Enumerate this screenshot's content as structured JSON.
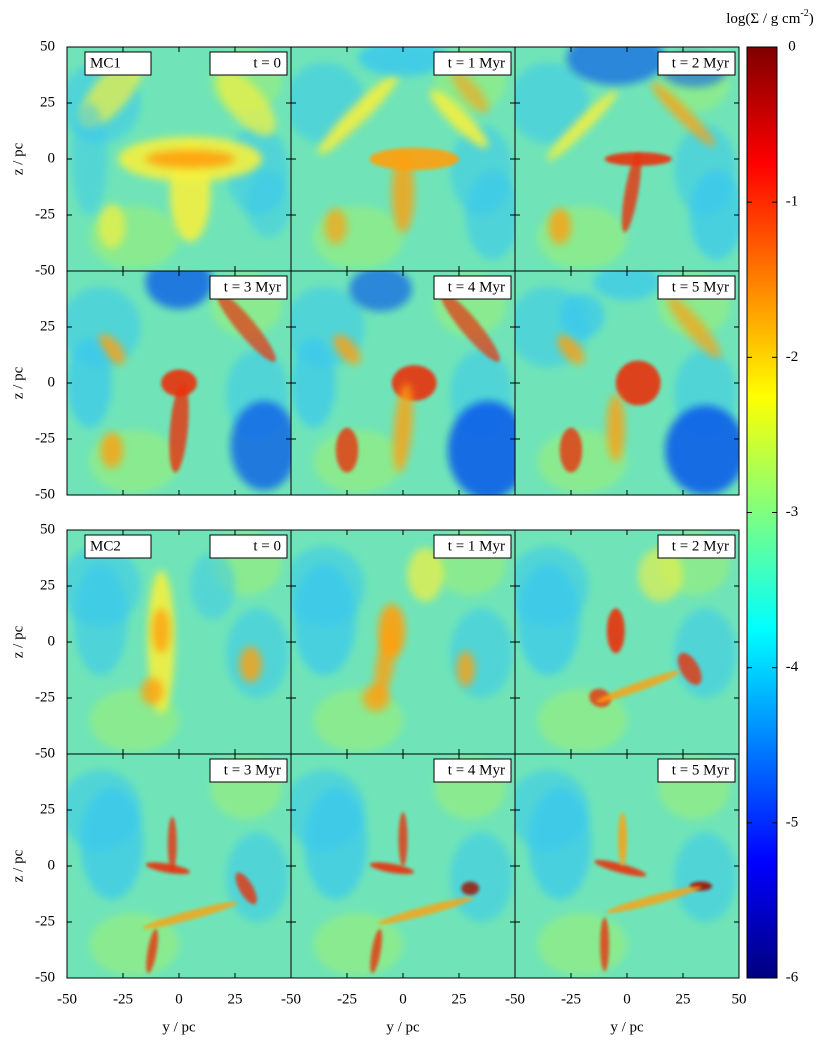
{
  "chart_data": {
    "type": "heatmap",
    "xlabel": "y / pc",
    "ylabel": "z / pc",
    "xlim": [
      -50,
      50
    ],
    "ylim": [
      -50,
      50
    ],
    "xticks": [
      -50,
      -25,
      0,
      25,
      50
    ],
    "yticks": [
      -50,
      -25,
      0,
      25,
      50
    ],
    "groups": [
      {
        "label": "MC1",
        "panels": [
          "t = 0",
          "t = 1 Myr",
          "t = 2 Myr",
          "t = 3 Myr",
          "t = 4 Myr",
          "t = 5 Myr"
        ]
      },
      {
        "label": "MC2",
        "panels": [
          "t = 0",
          "t = 1 Myr",
          "t = 2 Myr",
          "t = 3 Myr",
          "t = 4 Myr",
          "t = 5 Myr"
        ]
      }
    ],
    "colorbar": {
      "label": "log(Σ / g cm",
      "label_superscript": "-2",
      "label_end": ")",
      "lim": [
        -6,
        0
      ],
      "ticks": [
        0,
        -1,
        -2,
        -3,
        -4,
        -5,
        -6
      ],
      "colors": [
        "#00007f",
        "#0000ff",
        "#007fff",
        "#00ffff",
        "#7fff7f",
        "#ffff00",
        "#ff7f00",
        "#ff0000",
        "#7f0000"
      ]
    }
  }
}
